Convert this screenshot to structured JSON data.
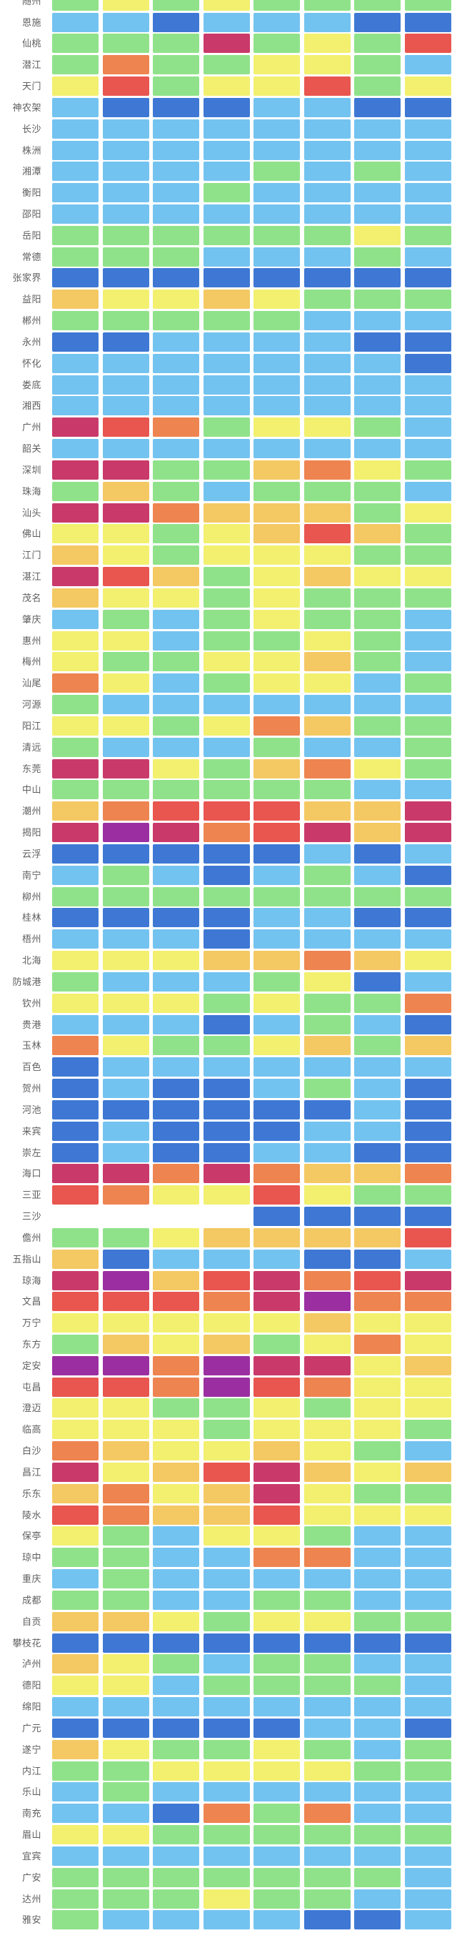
{
  "chart_data": {
    "type": "heatmap",
    "title": "",
    "columns": 8,
    "column_labels_visible": false,
    "legend_visible": false,
    "palette": {
      "B": {
        "name": "dark-blue",
        "hex": "#3e78d4"
      },
      "lb": {
        "name": "light-blue",
        "hex": "#73c3f0"
      },
      "g": {
        "name": "green",
        "hex": "#90e28a"
      },
      "y": {
        "name": "yellow",
        "hex": "#f2f06e"
      },
      "a": {
        "name": "amber",
        "hex": "#f4c963"
      },
      "o": {
        "name": "orange",
        "hex": "#ee8450"
      },
      "r": {
        "name": "red",
        "hex": "#e8564f"
      },
      "m": {
        "name": "rose",
        "hex": "#c93a6a"
      },
      "p": {
        "name": "purple",
        "hex": "#9b2fa2"
      }
    },
    "rows": [
      {
        "label": "随州",
        "cells": [
          "g",
          "y",
          "g",
          "y",
          "g",
          "g",
          "g",
          "g"
        ]
      },
      {
        "label": "恩施",
        "cells": [
          "lb",
          "lb",
          "B",
          "lb",
          "lb",
          "lb",
          "B",
          "B"
        ]
      },
      {
        "label": "仙桃",
        "cells": [
          "g",
          "g",
          "g",
          "m",
          "g",
          "y",
          "g",
          "r"
        ]
      },
      {
        "label": "潜江",
        "cells": [
          "g",
          "o",
          "g",
          "g",
          "y",
          "y",
          "g",
          "lb"
        ]
      },
      {
        "label": "天门",
        "cells": [
          "y",
          "r",
          "g",
          "y",
          "y",
          "r",
          "g",
          "y"
        ]
      },
      {
        "label": "神农架",
        "cells": [
          "lb",
          "B",
          "B",
          "B",
          "lb",
          "lb",
          "B",
          "B"
        ]
      },
      {
        "label": "长沙",
        "cells": [
          "lb",
          "lb",
          "lb",
          "lb",
          "lb",
          "lb",
          "lb",
          "lb"
        ]
      },
      {
        "label": "株洲",
        "cells": [
          "lb",
          "lb",
          "lb",
          "lb",
          "lb",
          "lb",
          "lb",
          "lb"
        ]
      },
      {
        "label": "湘潭",
        "cells": [
          "lb",
          "lb",
          "lb",
          "lb",
          "g",
          "lb",
          "g",
          "lb"
        ]
      },
      {
        "label": "衡阳",
        "cells": [
          "lb",
          "lb",
          "lb",
          "g",
          "lb",
          "lb",
          "lb",
          "lb"
        ]
      },
      {
        "label": "邵阳",
        "cells": [
          "lb",
          "lb",
          "lb",
          "lb",
          "lb",
          "lb",
          "lb",
          "lb"
        ]
      },
      {
        "label": "岳阳",
        "cells": [
          "g",
          "g",
          "g",
          "g",
          "g",
          "g",
          "y",
          "g"
        ]
      },
      {
        "label": "常德",
        "cells": [
          "g",
          "g",
          "g",
          "lb",
          "lb",
          "lb",
          "g",
          "lb"
        ]
      },
      {
        "label": "张家界",
        "cells": [
          "B",
          "B",
          "B",
          "B",
          "B",
          "B",
          "B",
          "B"
        ]
      },
      {
        "label": "益阳",
        "cells": [
          "a",
          "y",
          "y",
          "a",
          "y",
          "g",
          "g",
          "g"
        ]
      },
      {
        "label": "郴州",
        "cells": [
          "g",
          "g",
          "g",
          "g",
          "g",
          "lb",
          "lb",
          "lb"
        ]
      },
      {
        "label": "永州",
        "cells": [
          "B",
          "B",
          "lb",
          "lb",
          "lb",
          "lb",
          "B",
          "B"
        ]
      },
      {
        "label": "怀化",
        "cells": [
          "lb",
          "lb",
          "lb",
          "lb",
          "lb",
          "lb",
          "lb",
          "B"
        ]
      },
      {
        "label": "娄底",
        "cells": [
          "lb",
          "lb",
          "lb",
          "lb",
          "lb",
          "lb",
          "lb",
          "lb"
        ]
      },
      {
        "label": "湘西",
        "cells": [
          "lb",
          "lb",
          "lb",
          "lb",
          "lb",
          "lb",
          "lb",
          "lb"
        ]
      },
      {
        "label": "广州",
        "cells": [
          "m",
          "r",
          "o",
          "g",
          "y",
          "y",
          "g",
          "lb"
        ]
      },
      {
        "label": "韶关",
        "cells": [
          "lb",
          "lb",
          "lb",
          "lb",
          "lb",
          "lb",
          "lb",
          "lb"
        ]
      },
      {
        "label": "深圳",
        "cells": [
          "m",
          "m",
          "g",
          "g",
          "a",
          "o",
          "y",
          "g"
        ]
      },
      {
        "label": "珠海",
        "cells": [
          "g",
          "a",
          "g",
          "lb",
          "g",
          "g",
          "g",
          "lb"
        ]
      },
      {
        "label": "汕头",
        "cells": [
          "m",
          "m",
          "o",
          "a",
          "a",
          "a",
          "g",
          "y"
        ]
      },
      {
        "label": "佛山",
        "cells": [
          "y",
          "y",
          "g",
          "y",
          "a",
          "r",
          "a",
          "g"
        ]
      },
      {
        "label": "江门",
        "cells": [
          "a",
          "y",
          "g",
          "y",
          "y",
          "y",
          "g",
          "g"
        ]
      },
      {
        "label": "湛江",
        "cells": [
          "m",
          "r",
          "a",
          "g",
          "y",
          "a",
          "y",
          "y"
        ]
      },
      {
        "label": "茂名",
        "cells": [
          "a",
          "y",
          "y",
          "g",
          "y",
          "g",
          "g",
          "g"
        ]
      },
      {
        "label": "肇庆",
        "cells": [
          "lb",
          "g",
          "lb",
          "g",
          "y",
          "g",
          "g",
          "lb"
        ]
      },
      {
        "label": "惠州",
        "cells": [
          "y",
          "y",
          "lb",
          "g",
          "g",
          "y",
          "g",
          "lb"
        ]
      },
      {
        "label": "梅州",
        "cells": [
          "y",
          "g",
          "g",
          "y",
          "y",
          "a",
          "g",
          "lb"
        ]
      },
      {
        "label": "汕尾",
        "cells": [
          "o",
          "y",
          "lb",
          "g",
          "y",
          "y",
          "lb",
          "g"
        ]
      },
      {
        "label": "河源",
        "cells": [
          "g",
          "lb",
          "lb",
          "lb",
          "lb",
          "lb",
          "lb",
          "lb"
        ]
      },
      {
        "label": "阳江",
        "cells": [
          "y",
          "y",
          "g",
          "y",
          "o",
          "a",
          "g",
          "g"
        ]
      },
      {
        "label": "清远",
        "cells": [
          "g",
          "lb",
          "lb",
          "lb",
          "g",
          "lb",
          "lb",
          "g"
        ]
      },
      {
        "label": "东莞",
        "cells": [
          "m",
          "m",
          "y",
          "g",
          "a",
          "o",
          "y",
          "g"
        ]
      },
      {
        "label": "中山",
        "cells": [
          "g",
          "g",
          "g",
          "g",
          "g",
          "g",
          "lb",
          "lb"
        ]
      },
      {
        "label": "潮州",
        "cells": [
          "a",
          "o",
          "r",
          "r",
          "r",
          "a",
          "a",
          "m"
        ]
      },
      {
        "label": "揭阳",
        "cells": [
          "m",
          "p",
          "m",
          "o",
          "r",
          "m",
          "a",
          "m"
        ]
      },
      {
        "label": "云浮",
        "cells": [
          "B",
          "B",
          "B",
          "B",
          "B",
          "lb",
          "B",
          "lb"
        ]
      },
      {
        "label": "南宁",
        "cells": [
          "lb",
          "g",
          "lb",
          "B",
          "lb",
          "g",
          "lb",
          "B"
        ]
      },
      {
        "label": "柳州",
        "cells": [
          "g",
          "g",
          "g",
          "g",
          "g",
          "g",
          "g",
          "g"
        ]
      },
      {
        "label": "桂林",
        "cells": [
          "B",
          "B",
          "B",
          "B",
          "lb",
          "lb",
          "B",
          "B"
        ]
      },
      {
        "label": "梧州",
        "cells": [
          "lb",
          "lb",
          "lb",
          "B",
          "lb",
          "lb",
          "lb",
          "lb"
        ]
      },
      {
        "label": "北海",
        "cells": [
          "y",
          "y",
          "y",
          "a",
          "a",
          "o",
          "a",
          "y"
        ]
      },
      {
        "label": "防城港",
        "cells": [
          "g",
          "lb",
          "lb",
          "lb",
          "g",
          "y",
          "B",
          "lb"
        ]
      },
      {
        "label": "钦州",
        "cells": [
          "y",
          "y",
          "y",
          "g",
          "y",
          "g",
          "g",
          "o"
        ]
      },
      {
        "label": "贵港",
        "cells": [
          "lb",
          "lb",
          "lb",
          "B",
          "lb",
          "g",
          "lb",
          "B"
        ]
      },
      {
        "label": "玉林",
        "cells": [
          "o",
          "y",
          "g",
          "g",
          "y",
          "a",
          "g",
          "a"
        ]
      },
      {
        "label": "百色",
        "cells": [
          "B",
          "lb",
          "lb",
          "lb",
          "lb",
          "lb",
          "lb",
          "lb"
        ]
      },
      {
        "label": "贺州",
        "cells": [
          "B",
          "lb",
          "B",
          "B",
          "lb",
          "g",
          "lb",
          "B"
        ]
      },
      {
        "label": "河池",
        "cells": [
          "B",
          "B",
          "B",
          "B",
          "B",
          "B",
          "lb",
          "B"
        ]
      },
      {
        "label": "来宾",
        "cells": [
          "B",
          "lb",
          "B",
          "B",
          "B",
          "lb",
          "lb",
          "B"
        ]
      },
      {
        "label": "崇左",
        "cells": [
          "B",
          "lb",
          "B",
          "B",
          "lb",
          "lb",
          "B",
          "B"
        ]
      },
      {
        "label": "海口",
        "cells": [
          "m",
          "m",
          "o",
          "m",
          "o",
          "a",
          "a",
          "o"
        ]
      },
      {
        "label": "三亚",
        "cells": [
          "r",
          "o",
          "y",
          "y",
          "r",
          "y",
          "g",
          "g"
        ]
      },
      {
        "label": "三沙",
        "cells": [
          null,
          null,
          null,
          null,
          "B",
          "B",
          "B",
          "B"
        ]
      },
      {
        "label": "儋州",
        "cells": [
          "g",
          "g",
          "y",
          "a",
          "a",
          "a",
          "a",
          "r"
        ]
      },
      {
        "label": "五指山",
        "cells": [
          "a",
          "B",
          "lb",
          "lb",
          "lb",
          "B",
          "B",
          "lb"
        ]
      },
      {
        "label": "琼海",
        "cells": [
          "m",
          "p",
          "a",
          "r",
          "m",
          "o",
          "r",
          "m"
        ]
      },
      {
        "label": "文昌",
        "cells": [
          "r",
          "r",
          "r",
          "o",
          "m",
          "p",
          "o",
          "o"
        ]
      },
      {
        "label": "万宁",
        "cells": [
          "y",
          "y",
          "y",
          "y",
          "y",
          "a",
          "y",
          "y"
        ]
      },
      {
        "label": "东方",
        "cells": [
          "g",
          "a",
          "y",
          "a",
          "g",
          "y",
          "o",
          "y"
        ]
      },
      {
        "label": "定安",
        "cells": [
          "p",
          "p",
          "o",
          "p",
          "m",
          "m",
          "y",
          "a"
        ]
      },
      {
        "label": "屯昌",
        "cells": [
          "r",
          "r",
          "o",
          "p",
          "r",
          "o",
          "y",
          "y"
        ]
      },
      {
        "label": "澄迈",
        "cells": [
          "y",
          "y",
          "g",
          "g",
          "y",
          "g",
          "y",
          "y"
        ]
      },
      {
        "label": "临高",
        "cells": [
          "y",
          "y",
          "y",
          "g",
          "y",
          "y",
          "y",
          "g"
        ]
      },
      {
        "label": "白沙",
        "cells": [
          "o",
          "a",
          "y",
          "y",
          "a",
          "y",
          "g",
          "lb"
        ]
      },
      {
        "label": "昌江",
        "cells": [
          "m",
          "y",
          "a",
          "r",
          "m",
          "a",
          "y",
          "a"
        ]
      },
      {
        "label": "乐东",
        "cells": [
          "a",
          "o",
          "y",
          "a",
          "m",
          "y",
          "g",
          "g"
        ]
      },
      {
        "label": "陵水",
        "cells": [
          "r",
          "o",
          "a",
          "a",
          "r",
          "y",
          "y",
          "y"
        ]
      },
      {
        "label": "保亭",
        "cells": [
          "y",
          "g",
          "lb",
          "y",
          "y",
          "g",
          "lb",
          "lb"
        ]
      },
      {
        "label": "琼中",
        "cells": [
          "g",
          "g",
          "lb",
          "lb",
          "o",
          "o",
          "lb",
          "lb"
        ]
      },
      {
        "label": "重庆",
        "cells": [
          "lb",
          "g",
          "lb",
          "lb",
          "lb",
          "lb",
          "lb",
          "lb"
        ]
      },
      {
        "label": "成都",
        "cells": [
          "g",
          "g",
          "lb",
          "lb",
          "g",
          "g",
          "lb",
          "lb"
        ]
      },
      {
        "label": "自贡",
        "cells": [
          "a",
          "a",
          "y",
          "g",
          "y",
          "y",
          "g",
          "g"
        ]
      },
      {
        "label": "攀枝花",
        "cells": [
          "B",
          "B",
          "B",
          "B",
          "B",
          "B",
          "B",
          "B"
        ]
      },
      {
        "label": "泸州",
        "cells": [
          "a",
          "y",
          "g",
          "lb",
          "g",
          "g",
          "lb",
          "lb"
        ]
      },
      {
        "label": "德阳",
        "cells": [
          "y",
          "y",
          "lb",
          "g",
          "g",
          "g",
          "g",
          "lb"
        ]
      },
      {
        "label": "绵阳",
        "cells": [
          "lb",
          "lb",
          "lb",
          "lb",
          "lb",
          "lb",
          "lb",
          "lb"
        ]
      },
      {
        "label": "广元",
        "cells": [
          "B",
          "B",
          "B",
          "B",
          "B",
          "lb",
          "lb",
          "B"
        ]
      },
      {
        "label": "遂宁",
        "cells": [
          "a",
          "y",
          "g",
          "g",
          "y",
          "g",
          "lb",
          "g"
        ]
      },
      {
        "label": "内江",
        "cells": [
          "g",
          "g",
          "y",
          "y",
          "y",
          "y",
          "g",
          "g"
        ]
      },
      {
        "label": "乐山",
        "cells": [
          "lb",
          "g",
          "lb",
          "lb",
          "lb",
          "lb",
          "lb",
          "lb"
        ]
      },
      {
        "label": "南充",
        "cells": [
          "lb",
          "lb",
          "B",
          "o",
          "g",
          "o",
          "lb",
          "lb"
        ]
      },
      {
        "label": "眉山",
        "cells": [
          "y",
          "y",
          "g",
          "g",
          "g",
          "g",
          "g",
          "g"
        ]
      },
      {
        "label": "宜宾",
        "cells": [
          "lb",
          "lb",
          "lb",
          "lb",
          "lb",
          "lb",
          "lb",
          "lb"
        ]
      },
      {
        "label": "广安",
        "cells": [
          "g",
          "g",
          "g",
          "g",
          "g",
          "g",
          "g",
          "lb"
        ]
      },
      {
        "label": "达州",
        "cells": [
          "g",
          "g",
          "g",
          "y",
          "g",
          "g",
          "lb",
          "lb"
        ]
      },
      {
        "label": "雅安",
        "cells": [
          "g",
          "lb",
          "lb",
          "lb",
          "lb",
          "B",
          "B",
          "lb"
        ]
      }
    ]
  }
}
